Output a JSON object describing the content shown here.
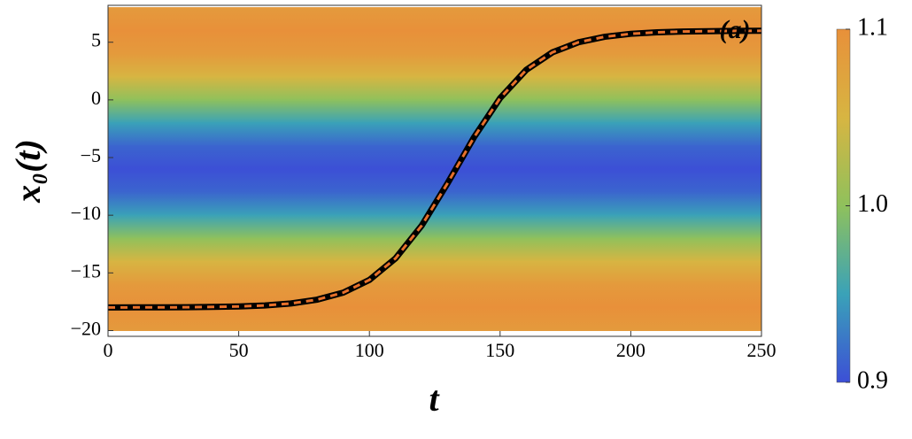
{
  "chart_data": {
    "type": "line",
    "x_label": "t",
    "y_label": "x₀(t)",
    "annotation": "(a)",
    "x": [
      0,
      10,
      20,
      30,
      40,
      50,
      60,
      70,
      80,
      90,
      100,
      110,
      120,
      130,
      140,
      150,
      160,
      170,
      180,
      190,
      200,
      210,
      220,
      230,
      240,
      250
    ],
    "series": [
      {
        "color": "#000000",
        "style": "solid",
        "values": [
          -18.0,
          -17.99,
          -17.99,
          -17.98,
          -17.95,
          -17.91,
          -17.82,
          -17.65,
          -17.32,
          -16.71,
          -15.61,
          -13.74,
          -10.9,
          -7.19,
          -3.25,
          0.15,
          2.6,
          4.12,
          5.0,
          5.47,
          5.73,
          5.86,
          5.93,
          5.96,
          5.98,
          5.99
        ]
      },
      {
        "color": "#e8702a",
        "style": "dashed",
        "values": [
          -18.0,
          -17.99,
          -17.99,
          -17.98,
          -17.95,
          -17.91,
          -17.82,
          -17.65,
          -17.32,
          -16.71,
          -15.61,
          -13.74,
          -10.9,
          -7.19,
          -3.25,
          0.15,
          2.6,
          4.12,
          5.0,
          5.47,
          5.73,
          5.86,
          5.93,
          5.96,
          5.98,
          5.99
        ]
      }
    ],
    "xlim": [
      0,
      250
    ],
    "xticks": [
      0,
      50,
      100,
      150,
      200,
      250
    ],
    "ylim": [
      -20.5,
      8.2
    ],
    "yticks": [
      {
        "value": -20,
        "label": "−20"
      },
      {
        "value": -15,
        "label": "−15"
      },
      {
        "value": -10,
        "label": "−10"
      },
      {
        "value": -5,
        "label": "−5"
      },
      0,
      5
    ],
    "heatmap": {
      "y": [
        8,
        6,
        4,
        2,
        0,
        -2,
        -4,
        -6,
        -8,
        -10,
        -12,
        -14,
        -16,
        -18,
        -20
      ],
      "values": [
        1.087,
        1.1,
        1.087,
        1.05,
        1.0,
        0.95,
        0.913,
        0.9,
        0.913,
        0.95,
        1.0,
        1.05,
        1.087,
        1.1,
        1.087
      ]
    },
    "colorbar": {
      "lim": [
        0.9,
        1.1
      ],
      "ticks": [
        0.9,
        {
          "value": 1,
          "label": "1.0"
        },
        1.1
      ],
      "colors": [
        "#3c4fd6",
        "#3aa2b8",
        "#8fc15c",
        "#d7b542",
        "#e8903a"
      ]
    }
  }
}
